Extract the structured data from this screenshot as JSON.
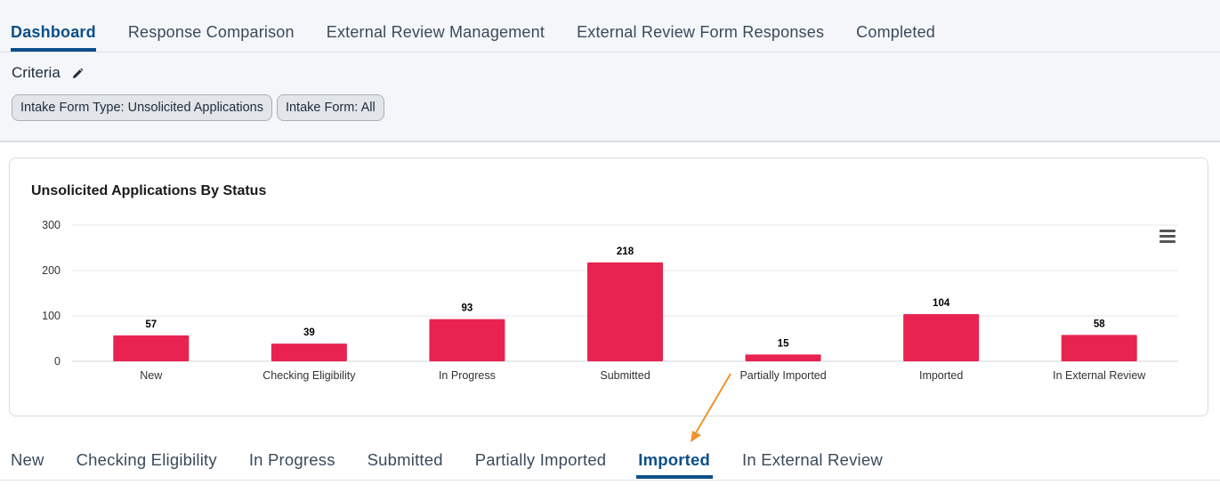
{
  "top_tabs": [
    {
      "label": "Dashboard",
      "active": true
    },
    {
      "label": "Response Comparison",
      "active": false
    },
    {
      "label": "External Review Management",
      "active": false
    },
    {
      "label": "External Review Form Responses",
      "active": false
    },
    {
      "label": "Completed",
      "active": false
    }
  ],
  "criteria": {
    "label": "Criteria",
    "edit_icon": "pencil-icon",
    "chips": [
      "Intake Form Type: Unsolicited Applications",
      "Intake Form: All"
    ]
  },
  "chart_data": {
    "type": "bar",
    "title": "Unsolicited Applications By Status",
    "categories": [
      "New",
      "Checking Eligibility",
      "In Progress",
      "Submitted",
      "Partially Imported",
      "Imported",
      "In External Review"
    ],
    "values": [
      57,
      39,
      93,
      218,
      15,
      104,
      58
    ],
    "yticks": [
      0,
      100,
      200,
      300
    ],
    "ylim": [
      0,
      300
    ],
    "xlabel": "",
    "ylabel": "",
    "bar_color": "#e8234f",
    "grid": true,
    "data_labels": true
  },
  "chart_menu_icon": "hamburger-menu-icon",
  "status_tabs": [
    {
      "label": "New",
      "active": false
    },
    {
      "label": "Checking Eligibility",
      "active": false
    },
    {
      "label": "In Progress",
      "active": false
    },
    {
      "label": "Submitted",
      "active": false
    },
    {
      "label": "Partially Imported",
      "active": false
    },
    {
      "label": "Imported",
      "active": true
    },
    {
      "label": "In External Review",
      "active": false
    }
  ],
  "colors": {
    "accent": "#0b4f8a",
    "annotation_arrow": "#f0922e"
  }
}
